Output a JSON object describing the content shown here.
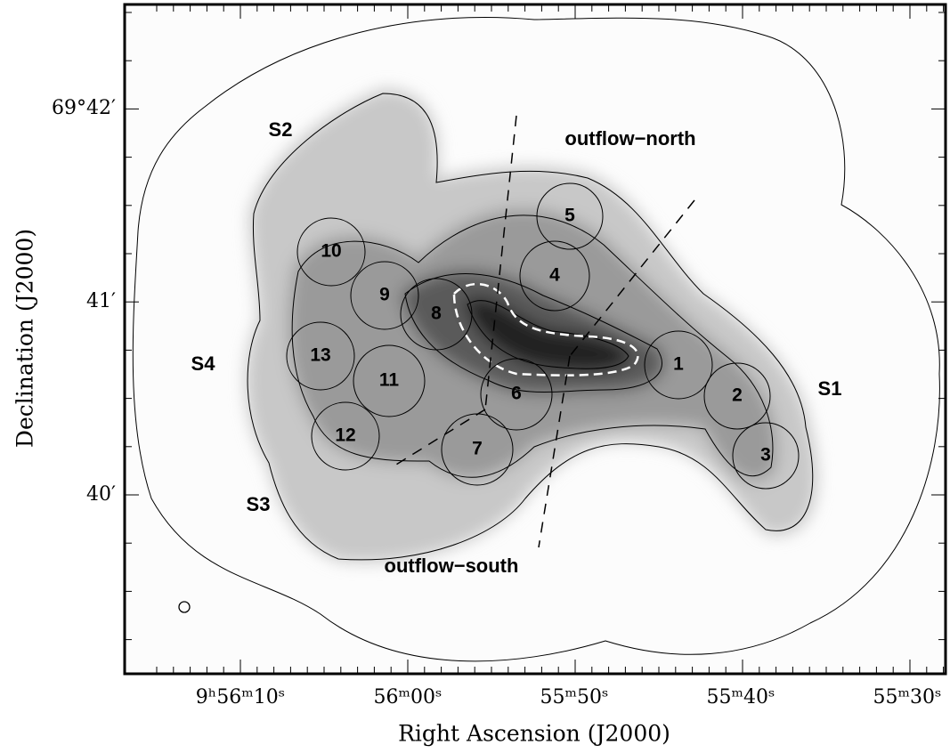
{
  "axes": {
    "x_label": "Right Ascension (J2000)",
    "y_label": "Declination (J2000)",
    "x_ticks": [
      "9ʰ56ᵐ10ˢ",
      "56ᵐ00ˢ",
      "55ᵐ50ˢ",
      "55ᵐ40ˢ",
      "55ᵐ30ˢ"
    ],
    "y_ticks": [
      "69°42′",
      "41′",
      "40′"
    ]
  },
  "regions": [
    "S2",
    "outflow−north",
    "S4",
    "S1",
    "S3",
    "outflow−south"
  ],
  "apertures": [
    "1",
    "2",
    "3",
    "4",
    "5",
    "6",
    "7",
    "8",
    "9",
    "10",
    "11",
    "12",
    "13"
  ]
}
